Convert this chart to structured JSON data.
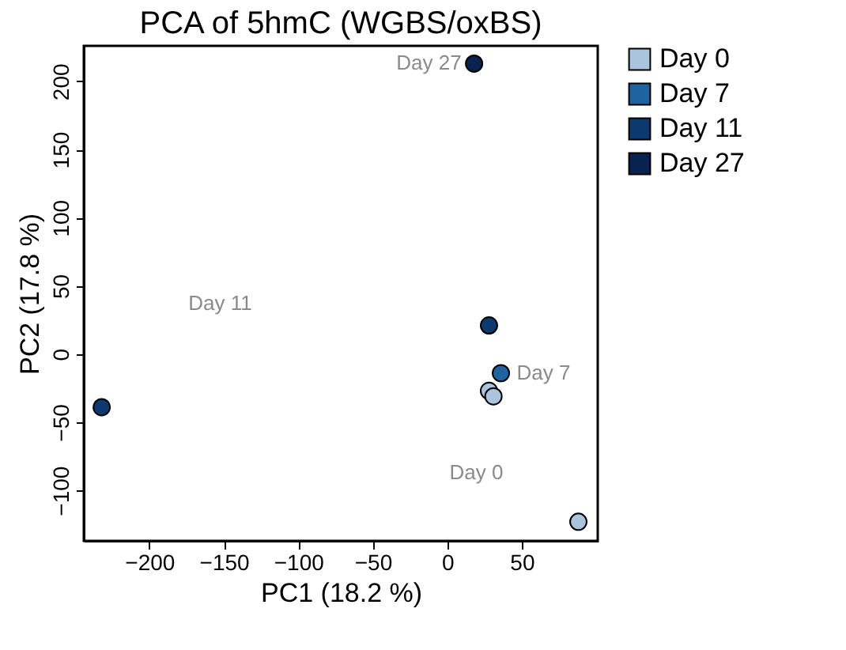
{
  "chart_data": {
    "type": "scatter",
    "title": "PCA of 5hmC (WGBS/oxBS)",
    "xlabel": "PC1 (18.2 %)",
    "ylabel": "PC2 (17.8 %)",
    "series": [
      {
        "name": "Day 0",
        "color": "#a9c4dc",
        "x": [
          28,
          31,
          88
        ],
        "values": [
          -27,
          -31,
          -123
        ]
      },
      {
        "name": "Day 7",
        "color": "#1f63a0",
        "x": [
          36
        ],
        "values": [
          -14
        ]
      },
      {
        "name": "Day 11",
        "color": "#0d3a6e",
        "x": [
          28,
          -232
        ],
        "values": [
          21,
          -39
        ]
      },
      {
        "name": "Day 27",
        "color": "#08234f",
        "x": [
          18
        ],
        "values": [
          213
        ]
      }
    ],
    "annotations": [
      "Day 0",
      "Day 7",
      "Day 11",
      "Day 27"
    ],
    "xlim": [
      -244,
      101
    ],
    "xticks": [
      -200,
      -150,
      -100,
      -50,
      0,
      50
    ],
    "ylim": [
      -137,
      226
    ],
    "yticks": [
      -100,
      -50,
      0,
      50,
      100,
      150,
      200
    ],
    "grid": false,
    "legend": "top right",
    "marker": "circle"
  }
}
